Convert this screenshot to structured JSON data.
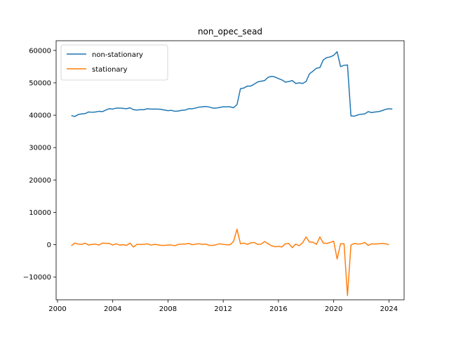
{
  "chart_data": {
    "type": "line",
    "title": "non_opec_sead",
    "xlabel": "",
    "ylabel": "",
    "xlim": [
      1999.9,
      2025.1
    ],
    "ylim": [
      -17000,
      63000
    ],
    "x_ticks": [
      2000,
      2004,
      2008,
      2012,
      2016,
      2020,
      2024
    ],
    "y_ticks": [
      -10000,
      0,
      10000,
      20000,
      30000,
      40000,
      50000,
      60000
    ],
    "grid": false,
    "legend_position": "top-left",
    "series": [
      {
        "name": "non-stationary",
        "color": "#1f77b4",
        "points": [
          [
            2001.0,
            39900
          ],
          [
            2001.25,
            39600
          ],
          [
            2001.5,
            40200
          ],
          [
            2001.75,
            40400
          ],
          [
            2002.0,
            40500
          ],
          [
            2002.25,
            41000
          ],
          [
            2002.5,
            40900
          ],
          [
            2002.75,
            41000
          ],
          [
            2003.0,
            41200
          ],
          [
            2003.25,
            41100
          ],
          [
            2003.5,
            41600
          ],
          [
            2003.75,
            42000
          ],
          [
            2004.0,
            41900
          ],
          [
            2004.25,
            42200
          ],
          [
            2004.5,
            42200
          ],
          [
            2004.75,
            42100
          ],
          [
            2005.0,
            42000
          ],
          [
            2005.25,
            42300
          ],
          [
            2005.5,
            41700
          ],
          [
            2005.75,
            41600
          ],
          [
            2006.0,
            41700
          ],
          [
            2006.25,
            41700
          ],
          [
            2006.5,
            42000
          ],
          [
            2006.75,
            41900
          ],
          [
            2007.0,
            41900
          ],
          [
            2007.25,
            41900
          ],
          [
            2007.5,
            41800
          ],
          [
            2007.75,
            41600
          ],
          [
            2008.0,
            41400
          ],
          [
            2008.25,
            41500
          ],
          [
            2008.5,
            41200
          ],
          [
            2008.75,
            41300
          ],
          [
            2009.0,
            41500
          ],
          [
            2009.25,
            41600
          ],
          [
            2009.5,
            42000
          ],
          [
            2009.75,
            42000
          ],
          [
            2010.0,
            42200
          ],
          [
            2010.25,
            42500
          ],
          [
            2010.5,
            42600
          ],
          [
            2010.75,
            42700
          ],
          [
            2011.0,
            42500
          ],
          [
            2011.25,
            42200
          ],
          [
            2011.5,
            42200
          ],
          [
            2011.75,
            42400
          ],
          [
            2012.0,
            42600
          ],
          [
            2012.25,
            42600
          ],
          [
            2012.5,
            42600
          ],
          [
            2012.75,
            42300
          ],
          [
            2013.0,
            43300
          ],
          [
            2013.25,
            48200
          ],
          [
            2013.5,
            48400
          ],
          [
            2013.75,
            49000
          ],
          [
            2014.0,
            49000
          ],
          [
            2014.25,
            49600
          ],
          [
            2014.5,
            50300
          ],
          [
            2014.75,
            50500
          ],
          [
            2015.0,
            50700
          ],
          [
            2015.25,
            51700
          ],
          [
            2015.5,
            52000
          ],
          [
            2015.75,
            51800
          ],
          [
            2016.0,
            51300
          ],
          [
            2016.25,
            50900
          ],
          [
            2016.5,
            50200
          ],
          [
            2016.75,
            50400
          ],
          [
            2017.0,
            50700
          ],
          [
            2017.25,
            49800
          ],
          [
            2017.5,
            50000
          ],
          [
            2017.75,
            49800
          ],
          [
            2018.0,
            50400
          ],
          [
            2018.25,
            52800
          ],
          [
            2018.5,
            53600
          ],
          [
            2018.75,
            54500
          ],
          [
            2019.0,
            54700
          ],
          [
            2019.25,
            57100
          ],
          [
            2019.5,
            57800
          ],
          [
            2019.75,
            58000
          ],
          [
            2020.0,
            58500
          ],
          [
            2020.25,
            59600
          ],
          [
            2020.5,
            55000
          ],
          [
            2020.75,
            55400
          ],
          [
            2021.0,
            55500
          ],
          [
            2021.25,
            39800
          ],
          [
            2021.5,
            39700
          ],
          [
            2021.75,
            40100
          ],
          [
            2022.0,
            40300
          ],
          [
            2022.25,
            40400
          ],
          [
            2022.5,
            41100
          ],
          [
            2022.75,
            40800
          ],
          [
            2023.0,
            41000
          ],
          [
            2023.25,
            41100
          ],
          [
            2023.5,
            41400
          ],
          [
            2023.75,
            41800
          ],
          [
            2024.0,
            42000
          ],
          [
            2024.25,
            41900
          ]
        ]
      },
      {
        "name": "stationary",
        "color": "#ff7f0e",
        "points": [
          [
            2001.0,
            -300
          ],
          [
            2001.25,
            500
          ],
          [
            2001.5,
            200
          ],
          [
            2001.75,
            100
          ],
          [
            2002.0,
            500
          ],
          [
            2002.25,
            -100
          ],
          [
            2002.5,
            100
          ],
          [
            2002.75,
            200
          ],
          [
            2003.0,
            -100
          ],
          [
            2003.25,
            500
          ],
          [
            2003.75,
            400
          ],
          [
            2004.0,
            -100
          ],
          [
            2004.25,
            300
          ],
          [
            2004.5,
            -100
          ],
          [
            2004.75,
            0
          ],
          [
            2005.0,
            -200
          ],
          [
            2005.25,
            500
          ],
          [
            2005.5,
            -700
          ],
          [
            2005.75,
            100
          ],
          [
            2006.0,
            100
          ],
          [
            2006.25,
            100
          ],
          [
            2006.5,
            300
          ],
          [
            2006.75,
            -100
          ],
          [
            2007.0,
            100
          ],
          [
            2007.25,
            0
          ],
          [
            2007.5,
            -200
          ],
          [
            2007.75,
            -200
          ],
          [
            2008.0,
            -100
          ],
          [
            2008.25,
            -100
          ],
          [
            2008.5,
            -300
          ],
          [
            2008.75,
            100
          ],
          [
            2009.0,
            200
          ],
          [
            2009.25,
            200
          ],
          [
            2009.5,
            400
          ],
          [
            2009.75,
            0
          ],
          [
            2010.0,
            200
          ],
          [
            2010.25,
            300
          ],
          [
            2010.5,
            100
          ],
          [
            2010.75,
            200
          ],
          [
            2011.0,
            -200
          ],
          [
            2011.25,
            -200
          ],
          [
            2011.5,
            0
          ],
          [
            2011.75,
            300
          ],
          [
            2012.0,
            100
          ],
          [
            2012.25,
            0
          ],
          [
            2012.5,
            0
          ],
          [
            2012.75,
            1000
          ],
          [
            2013.0,
            4800
          ],
          [
            2013.25,
            300
          ],
          [
            2013.5,
            500
          ],
          [
            2013.75,
            100
          ],
          [
            2014.0,
            600
          ],
          [
            2014.25,
            700
          ],
          [
            2014.5,
            100
          ],
          [
            2014.75,
            200
          ],
          [
            2015.0,
            1000
          ],
          [
            2015.25,
            300
          ],
          [
            2015.5,
            -300
          ],
          [
            2015.75,
            -600
          ],
          [
            2016.0,
            -500
          ],
          [
            2016.25,
            -700
          ],
          [
            2016.5,
            300
          ],
          [
            2016.75,
            400
          ],
          [
            2017.0,
            -900
          ],
          [
            2017.25,
            200
          ],
          [
            2017.5,
            -300
          ],
          [
            2017.75,
            600
          ],
          [
            2018.0,
            2400
          ],
          [
            2018.25,
            800
          ],
          [
            2018.5,
            800
          ],
          [
            2018.75,
            100
          ],
          [
            2019.0,
            2400
          ],
          [
            2019.25,
            500
          ],
          [
            2019.5,
            400
          ],
          [
            2019.75,
            700
          ],
          [
            2020.0,
            1100
          ],
          [
            2020.25,
            -4400
          ],
          [
            2020.5,
            300
          ],
          [
            2020.75,
            300
          ],
          [
            2021.0,
            -15700
          ],
          [
            2021.25,
            -100
          ],
          [
            2021.5,
            400
          ],
          [
            2021.75,
            200
          ],
          [
            2022.0,
            300
          ],
          [
            2022.25,
            700
          ],
          [
            2022.5,
            -200
          ],
          [
            2022.75,
            300
          ],
          [
            2023.0,
            200
          ],
          [
            2023.25,
            300
          ],
          [
            2023.5,
            400
          ],
          [
            2023.75,
            300
          ],
          [
            2024.0,
            0
          ]
        ]
      }
    ]
  }
}
